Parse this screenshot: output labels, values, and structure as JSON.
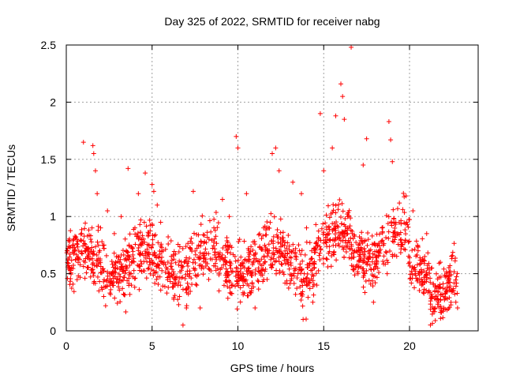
{
  "chart_data": {
    "type": "scatter",
    "title": "Day 325 of 2022, SRMTID for receiver nabg",
    "xlabel": "GPS time / hours",
    "ylabel": "SRMTID / TECUs",
    "xlim": [
      0,
      24
    ],
    "ylim": [
      0,
      2.5
    ],
    "xticks": [
      0,
      5,
      10,
      15,
      20
    ],
    "xtick_labels": [
      "0",
      "5",
      "10",
      "15",
      "20"
    ],
    "yticks": [
      0,
      0.5,
      1,
      1.5,
      2,
      2.5
    ],
    "ytick_labels": [
      "0",
      "0.5",
      "1",
      "1.5",
      "2",
      "2.5"
    ],
    "grid": true,
    "marker": "+",
    "color": "#ff0000",
    "series": [
      {
        "name": "SRMTID",
        "points": [
          [
            0.1,
            0.62
          ],
          [
            0.3,
            0.55
          ],
          [
            0.5,
            0.7
          ],
          [
            0.7,
            0.48
          ],
          [
            0.9,
            0.85
          ],
          [
            1.0,
            1.65
          ],
          [
            1.1,
            0.6
          ],
          [
            1.3,
            0.72
          ],
          [
            1.5,
            0.9
          ],
          [
            1.55,
            1.62
          ],
          [
            1.6,
            1.55
          ],
          [
            1.7,
            1.4
          ],
          [
            1.8,
            1.2
          ],
          [
            1.9,
            0.35
          ],
          [
            2.0,
            0.9
          ],
          [
            2.2,
            0.75
          ],
          [
            2.4,
            1.05
          ],
          [
            2.6,
            0.5
          ],
          [
            2.8,
            0.85
          ],
          [
            3.0,
            0.65
          ],
          [
            3.2,
            1.0
          ],
          [
            3.5,
            0.7
          ],
          [
            3.6,
            1.42
          ],
          [
            3.8,
            0.6
          ],
          [
            4.0,
            0.9
          ],
          [
            4.2,
            1.2
          ],
          [
            4.4,
            0.75
          ],
          [
            4.6,
            1.38
          ],
          [
            4.8,
            0.55
          ],
          [
            5.0,
            1.28
          ],
          [
            5.1,
            1.22
          ],
          [
            5.3,
            1.1
          ],
          [
            5.5,
            0.95
          ],
          [
            5.7,
            0.6
          ],
          [
            6.0,
            0.5
          ],
          [
            6.3,
            0.4
          ],
          [
            6.6,
            0.3
          ],
          [
            6.8,
            0.05
          ],
          [
            7.0,
            0.2
          ],
          [
            7.2,
            0.5
          ],
          [
            7.4,
            1.22
          ],
          [
            7.6,
            0.4
          ],
          [
            7.8,
            0.2
          ],
          [
            8.0,
            0.55
          ],
          [
            8.3,
            0.45
          ],
          [
            8.6,
            0.9
          ],
          [
            8.9,
            0.35
          ],
          [
            9.1,
            1.15
          ],
          [
            9.3,
            0.6
          ],
          [
            9.5,
            1.0
          ],
          [
            9.7,
            0.4
          ],
          [
            9.9,
            1.7
          ],
          [
            10.0,
            1.6
          ],
          [
            10.1,
            0.8
          ],
          [
            10.3,
            0.5
          ],
          [
            10.5,
            1.2
          ],
          [
            10.8,
            0.35
          ],
          [
            11.0,
            0.2
          ],
          [
            11.2,
            0.55
          ],
          [
            11.5,
            0.9
          ],
          [
            11.7,
            0.45
          ],
          [
            12.0,
            1.55
          ],
          [
            12.2,
            1.6
          ],
          [
            12.4,
            1.4
          ],
          [
            12.6,
            0.75
          ],
          [
            12.9,
            0.6
          ],
          [
            13.2,
            1.3
          ],
          [
            13.5,
            0.5
          ],
          [
            13.7,
            1.2
          ],
          [
            13.8,
            0.1
          ],
          [
            14.0,
            0.9
          ],
          [
            14.3,
            0.7
          ],
          [
            14.6,
            0.4
          ],
          [
            14.8,
            1.9
          ],
          [
            15.0,
            1.4
          ],
          [
            15.2,
            0.8
          ],
          [
            15.5,
            1.6
          ],
          [
            15.7,
            1.88
          ],
          [
            16.0,
            2.16
          ],
          [
            16.1,
            2.05
          ],
          [
            16.2,
            1.85
          ],
          [
            16.4,
            1.0
          ],
          [
            16.6,
            2.48
          ],
          [
            16.8,
            0.7
          ],
          [
            17.0,
            0.5
          ],
          [
            17.3,
            1.45
          ],
          [
            17.5,
            1.68
          ],
          [
            17.6,
            0.8
          ],
          [
            17.9,
            0.25
          ],
          [
            18.1,
            0.65
          ],
          [
            18.4,
            0.9
          ],
          [
            18.7,
            0.5
          ],
          [
            18.8,
            1.83
          ],
          [
            18.9,
            1.67
          ],
          [
            19.0,
            1.48
          ],
          [
            19.2,
            0.95
          ],
          [
            19.5,
            0.8
          ],
          [
            19.8,
            1.18
          ],
          [
            20.0,
            0.6
          ],
          [
            20.2,
            1.05
          ],
          [
            20.5,
            0.7
          ],
          [
            20.7,
            0.4
          ],
          [
            21.0,
            0.85
          ],
          [
            21.3,
            0.55
          ],
          [
            21.5,
            0.3
          ],
          [
            21.8,
            0.6
          ],
          [
            22.0,
            0.2
          ],
          [
            22.3,
            0.45
          ],
          [
            22.5,
            0.35
          ],
          [
            22.7,
            0.25
          ],
          [
            22.8,
            0.2
          ]
        ]
      }
    ],
    "noise_seed": 325
  }
}
